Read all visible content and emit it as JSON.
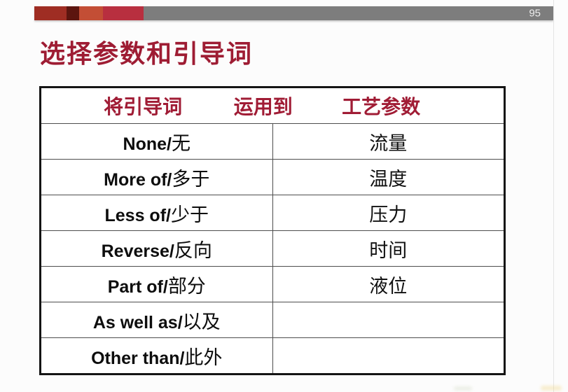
{
  "page": {
    "number": "95"
  },
  "title": "选择参数和引导词",
  "colors": {
    "accent_title": "#9e1c33",
    "header_text": "#a01c35",
    "bar_segments": [
      "#9f2d23",
      "#5c150f",
      "#c34e35",
      "#b82f3f"
    ],
    "bar_gray": "#7d7d7d",
    "table_border": "#141414"
  },
  "table": {
    "header": {
      "col1": "将引导词",
      "col2": "运用到",
      "col3": "工艺参数"
    },
    "rows": [
      {
        "en": "None/",
        "cn": "无",
        "param": "流量"
      },
      {
        "en": "More of/",
        "cn": "多于",
        "param": "温度"
      },
      {
        "en": "Less of/",
        "cn": "少于",
        "param": "压力"
      },
      {
        "en": "Reverse/",
        "cn": "反向",
        "param": "时间"
      },
      {
        "en": "Part of/",
        "cn": "部分",
        "param": "液位"
      },
      {
        "en": "As well as/",
        "cn": "以及",
        "param": ""
      },
      {
        "en": "Other than/",
        "cn": "此外",
        "param": ""
      }
    ]
  }
}
